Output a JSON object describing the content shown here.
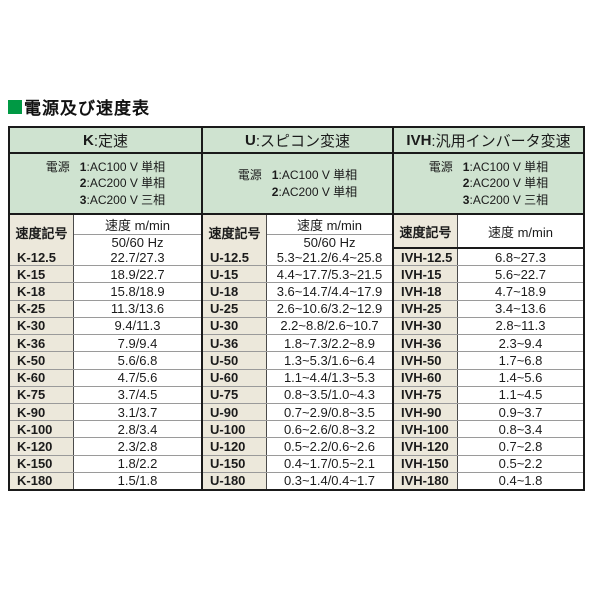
{
  "page": {
    "title": "電源及び速度表"
  },
  "palette": {
    "accent_green": "#009944",
    "header_green": "#cfe3d0",
    "code_cell_beige": "#ece8db",
    "border_black": "#1a1a1a",
    "row_line_gray": "#9a9a9a"
  },
  "table": {
    "sections": [
      {
        "id": "K",
        "header": {
          "code": "K",
          "desc": ":定速"
        },
        "power_label": "電源",
        "power_lines": [
          {
            "num": "1",
            "text": ":AC100 V 単相"
          },
          {
            "num": "2",
            "text": ":AC200 V 単相"
          },
          {
            "num": "3",
            "text": ":AC200 V 三相"
          }
        ],
        "subheader": {
          "code_header": "速度記号",
          "speed_header": "速度 m/min",
          "freq_header": "50/60 Hz"
        },
        "rows": [
          {
            "code": "K-12.5",
            "value": "22.7/27.3"
          },
          {
            "code": "K-15",
            "value": "18.9/22.7"
          },
          {
            "code": "K-18",
            "value": "15.8/18.9"
          },
          {
            "code": "K-25",
            "value": "11.3/13.6"
          },
          {
            "code": "K-30",
            "value": "9.4/11.3"
          },
          {
            "code": "K-36",
            "value": "7.9/9.4"
          },
          {
            "code": "K-50",
            "value": "5.6/6.8"
          },
          {
            "code": "K-60",
            "value": "4.7/5.6"
          },
          {
            "code": "K-75",
            "value": "3.7/4.5"
          },
          {
            "code": "K-90",
            "value": "3.1/3.7"
          },
          {
            "code": "K-100",
            "value": "2.8/3.4"
          },
          {
            "code": "K-120",
            "value": "2.3/2.8"
          },
          {
            "code": "K-150",
            "value": "1.8/2.2"
          },
          {
            "code": "K-180",
            "value": "1.5/1.8"
          }
        ]
      },
      {
        "id": "U",
        "header": {
          "code": "U",
          "desc": ":スピコン変速"
        },
        "power_label": "電源",
        "power_lines": [
          {
            "num": "1",
            "text": ":AC100 V 単相"
          },
          {
            "num": "2",
            "text": ":AC200 V 単相"
          }
        ],
        "subheader": {
          "code_header": "速度記号",
          "speed_header": "速度 m/min",
          "freq_header": "50/60 Hz"
        },
        "rows": [
          {
            "code": "U-12.5",
            "value": "5.3~21.2/6.4~25.8"
          },
          {
            "code": "U-15",
            "value": "4.4~17.7/5.3~21.5"
          },
          {
            "code": "U-18",
            "value": "3.6~14.7/4.4~17.9"
          },
          {
            "code": "U-25",
            "value": "2.6~10.6/3.2~12.9"
          },
          {
            "code": "U-30",
            "value": "2.2~8.8/2.6~10.7"
          },
          {
            "code": "U-36",
            "value": "1.8~7.3/2.2~8.9"
          },
          {
            "code": "U-50",
            "value": "1.3~5.3/1.6~6.4"
          },
          {
            "code": "U-60",
            "value": "1.1~4.4/1.3~5.3"
          },
          {
            "code": "U-75",
            "value": "0.8~3.5/1.0~4.3"
          },
          {
            "code": "U-90",
            "value": "0.7~2.9/0.8~3.5"
          },
          {
            "code": "U-100",
            "value": "0.6~2.6/0.8~3.2"
          },
          {
            "code": "U-120",
            "value": "0.5~2.2/0.6~2.6"
          },
          {
            "code": "U-150",
            "value": "0.4~1.7/0.5~2.1"
          },
          {
            "code": "U-180",
            "value": "0.3~1.4/0.4~1.7"
          }
        ]
      },
      {
        "id": "IVH",
        "header": {
          "code": "IVH",
          "desc": ":汎用インバータ変速"
        },
        "power_label": "電源",
        "power_lines": [
          {
            "num": "1",
            "text": ":AC100 V 単相"
          },
          {
            "num": "2",
            "text": ":AC200 V 単相"
          },
          {
            "num": "3",
            "text": ":AC200 V 三相"
          }
        ],
        "subheader": {
          "code_header": "速度記号",
          "speed_header": "速度 m/min"
        },
        "rows": [
          {
            "code": "IVH-12.5",
            "value": "6.8~27.3"
          },
          {
            "code": "IVH-15",
            "value": "5.6~22.7"
          },
          {
            "code": "IVH-18",
            "value": "4.7~18.9"
          },
          {
            "code": "IVH-25",
            "value": "3.4~13.6"
          },
          {
            "code": "IVH-30",
            "value": "2.8~11.3"
          },
          {
            "code": "IVH-36",
            "value": "2.3~9.4"
          },
          {
            "code": "IVH-50",
            "value": "1.7~6.8"
          },
          {
            "code": "IVH-60",
            "value": "1.4~5.6"
          },
          {
            "code": "IVH-75",
            "value": "1.1~4.5"
          },
          {
            "code": "IVH-90",
            "value": "0.9~3.7"
          },
          {
            "code": "IVH-100",
            "value": "0.8~3.4"
          },
          {
            "code": "IVH-120",
            "value": "0.7~2.8"
          },
          {
            "code": "IVH-150",
            "value": "0.5~2.2"
          },
          {
            "code": "IVH-180",
            "value": "0.4~1.8"
          }
        ]
      }
    ]
  }
}
